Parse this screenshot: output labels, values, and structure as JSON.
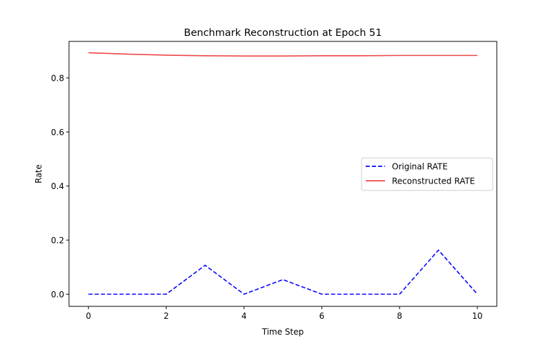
{
  "chart_data": {
    "type": "line",
    "title": "Benchmark Reconstruction at Epoch 51",
    "xlabel": "Time Step",
    "ylabel": "Rate",
    "x": [
      0,
      1,
      2,
      3,
      4,
      5,
      6,
      7,
      8,
      9,
      10
    ],
    "xlim": [
      -0.5,
      10.5
    ],
    "ylim": [
      -0.045,
      0.935
    ],
    "xticks": [
      0,
      2,
      4,
      6,
      8,
      10
    ],
    "yticks": [
      0.0,
      0.2,
      0.4,
      0.6,
      0.8
    ],
    "ytick_labels": [
      "0.0",
      "0.2",
      "0.4",
      "0.6",
      "0.8"
    ],
    "grid": false,
    "legend_position": "center-right",
    "series": [
      {
        "name": "Original RATE",
        "values": [
          0.0,
          0.0,
          0.0,
          0.107,
          0.0,
          0.054,
          0.0,
          0.0,
          0.0,
          0.163,
          0.0
        ],
        "color": "#0000ff",
        "style": "dashed"
      },
      {
        "name": "Reconstructed RATE",
        "values": [
          0.893,
          0.888,
          0.884,
          0.882,
          0.881,
          0.881,
          0.882,
          0.882,
          0.883,
          0.883,
          0.883
        ],
        "color": "#ee4444",
        "style": "solid"
      }
    ]
  }
}
